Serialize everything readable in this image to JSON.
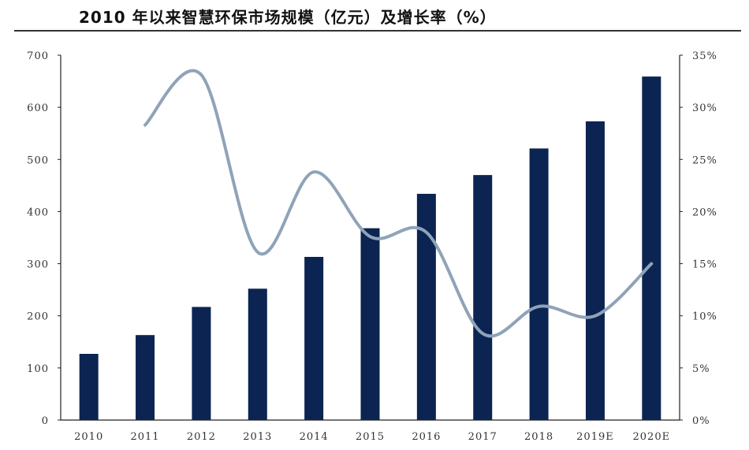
{
  "title": "2010 年以来智慧环保市场规模（亿元）及增长率（%）",
  "chart_data": {
    "type": "bar",
    "title": "2010 年以来智慧环保市场规模（亿元）及增长率（%）",
    "categories": [
      "2010",
      "2011",
      "2012",
      "2013",
      "2014",
      "2015",
      "2016",
      "2017",
      "2018",
      "2019E",
      "2020E"
    ],
    "series": [
      {
        "type": "bar",
        "axis": "left",
        "color": "#0b2452",
        "values": [
          127,
          163,
          217,
          252,
          313,
          368,
          434,
          470,
          521,
          573,
          659
        ]
      },
      {
        "type": "line",
        "axis": "right",
        "color": "#8fa3b8",
        "values": [
          null,
          28.3,
          33.1,
          16.1,
          23.8,
          17.6,
          18.0,
          8.3,
          10.9,
          10.0,
          15.0
        ]
      }
    ],
    "ylim_left": [
      0,
      700
    ],
    "yticks_left": [
      "0",
      "100",
      "200",
      "300",
      "400",
      "500",
      "600",
      "700"
    ],
    "ylim_right": [
      0,
      35
    ],
    "yticks_right": [
      "0%",
      "5%",
      "10%",
      "15%",
      "20%",
      "25%",
      "30%",
      "35%"
    ],
    "legend": "none",
    "grid": false
  }
}
